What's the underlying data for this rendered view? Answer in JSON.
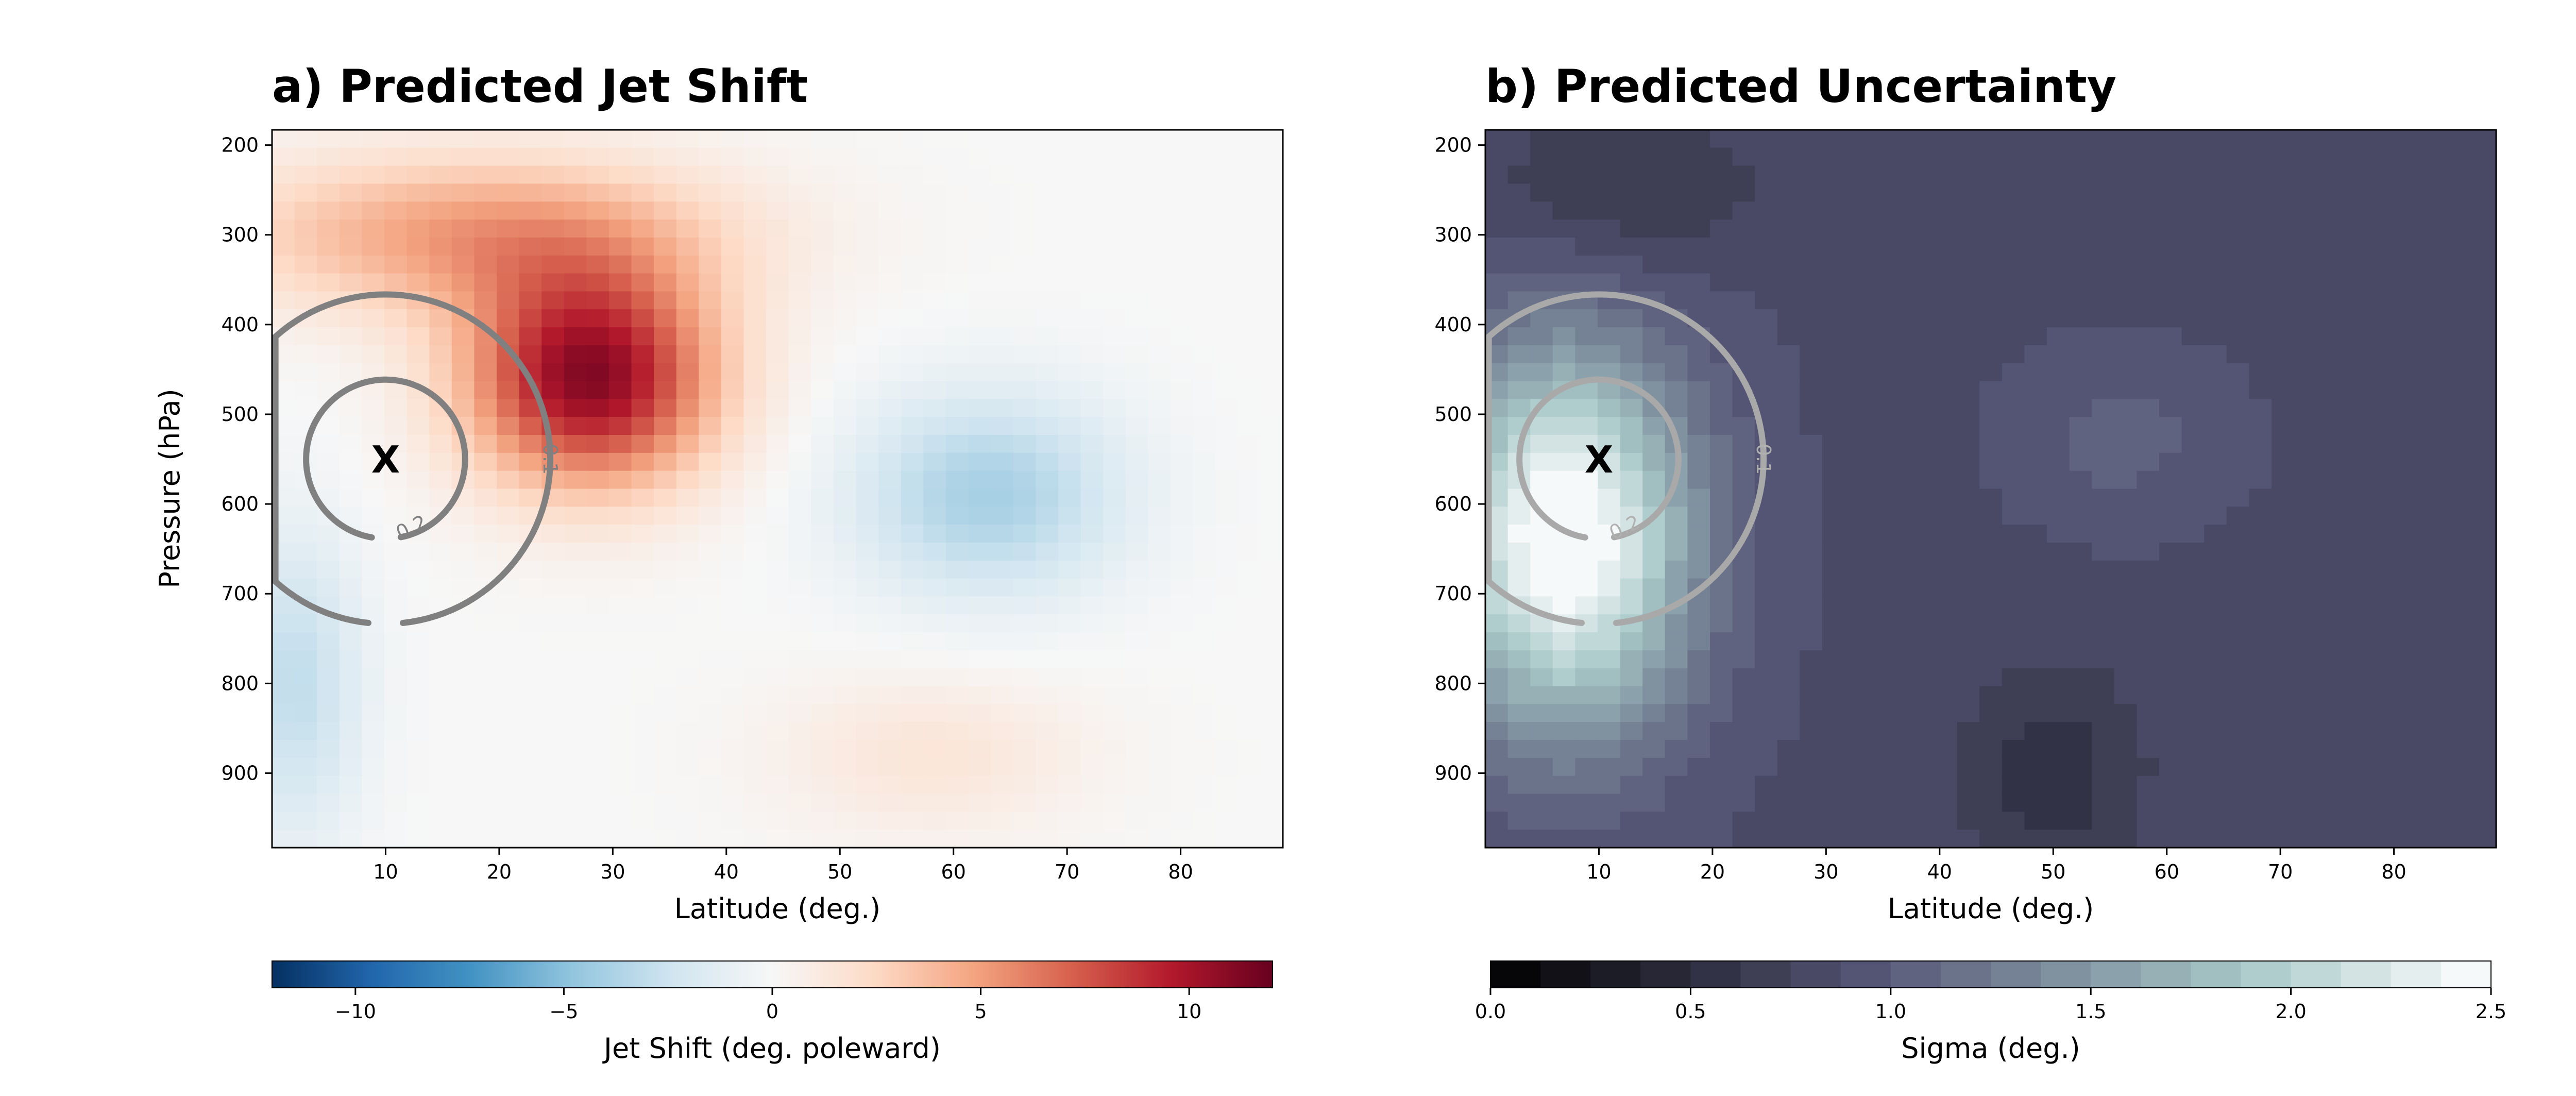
{
  "chart_data": [
    {
      "type": "heatmap",
      "title": "a) Predicted Jet Shift",
      "xlabel": "Latitude (deg.)",
      "ylabel": "Pressure (hPa)",
      "xlim": [
        0,
        89
      ],
      "ylim": [
        983,
        183
      ],
      "x_ticks": [
        10,
        20,
        30,
        40,
        50,
        60,
        70,
        80
      ],
      "y_ticks": [
        200,
        300,
        400,
        500,
        600,
        700,
        800,
        900
      ],
      "colormap": "RdBu_r",
      "colorbar": {
        "label": "Jet Shift (deg. poleward)",
        "range": [
          -12,
          12
        ],
        "ticks": [
          -10,
          -5,
          0,
          5,
          10
        ],
        "tick_labels": [
          "−10",
          "−5",
          "0",
          "5",
          "10"
        ]
      },
      "grid": false,
      "field_features": [
        {
          "feature": "positive maximum",
          "lat": 28,
          "pressure": 460,
          "value": 11
        },
        {
          "feature": "upper positive band",
          "lat": 18,
          "pressure": 300,
          "value": 5
        },
        {
          "feature": "negative minimum",
          "lat": 63,
          "pressure": 590,
          "value": -4
        },
        {
          "feature": "weak negative (south)",
          "lat": 2,
          "pressure": 800,
          "value": -3
        },
        {
          "feature": "weak positive (north, lower)",
          "lat": 58,
          "pressure": 880,
          "value": 1.5
        }
      ],
      "marker": {
        "label": "X",
        "lat": 10,
        "pressure": 550
      },
      "contours": [
        {
          "level": "0.2",
          "center_lat": 10,
          "center_pressure": 550,
          "radius_deg": 7
        },
        {
          "level": "0.1",
          "center_lat": 10,
          "center_pressure": 550,
          "radius_deg": 14.5
        }
      ]
    },
    {
      "type": "heatmap",
      "title": "b) Predicted Uncertainty",
      "xlabel": "Latitude (deg.)",
      "ylabel": "",
      "xlim": [
        0,
        89
      ],
      "ylim": [
        983,
        183
      ],
      "x_ticks": [
        10,
        20,
        30,
        40,
        50,
        60,
        70,
        80
      ],
      "y_ticks": [
        200,
        300,
        400,
        500,
        600,
        700,
        800,
        900
      ],
      "colormap": "bone (discrete)",
      "colorbar": {
        "label": "Sigma (deg.)",
        "range": [
          0,
          2.5
        ],
        "ticks": [
          0.0,
          0.5,
          1.0,
          1.5,
          2.0,
          2.5
        ],
        "tick_labels": [
          "0.0",
          "0.5",
          "1.0",
          "1.5",
          "2.0",
          "2.5"
        ],
        "n_levels": 20
      },
      "grid": false,
      "field_features": [
        {
          "feature": "maximum",
          "lat": 7,
          "pressure": 640,
          "value": 2.5
        },
        {
          "feature": "background",
          "value": 0.85
        },
        {
          "feature": "upper-left low",
          "lat": 12,
          "pressure": 250,
          "value": 0.6
        },
        {
          "feature": "lower low",
          "lat": 50,
          "pressure": 900,
          "value": 0.55
        },
        {
          "feature": "mid bump",
          "lat": 56,
          "pressure": 530,
          "value": 1.05
        }
      ],
      "marker": {
        "label": "X",
        "lat": 10,
        "pressure": 550
      },
      "contours": [
        {
          "level": "0.2",
          "center_lat": 10,
          "center_pressure": 550,
          "radius_deg": 7
        },
        {
          "level": "0.1",
          "center_lat": 10,
          "center_pressure": 550,
          "radius_deg": 14.5
        }
      ]
    }
  ]
}
